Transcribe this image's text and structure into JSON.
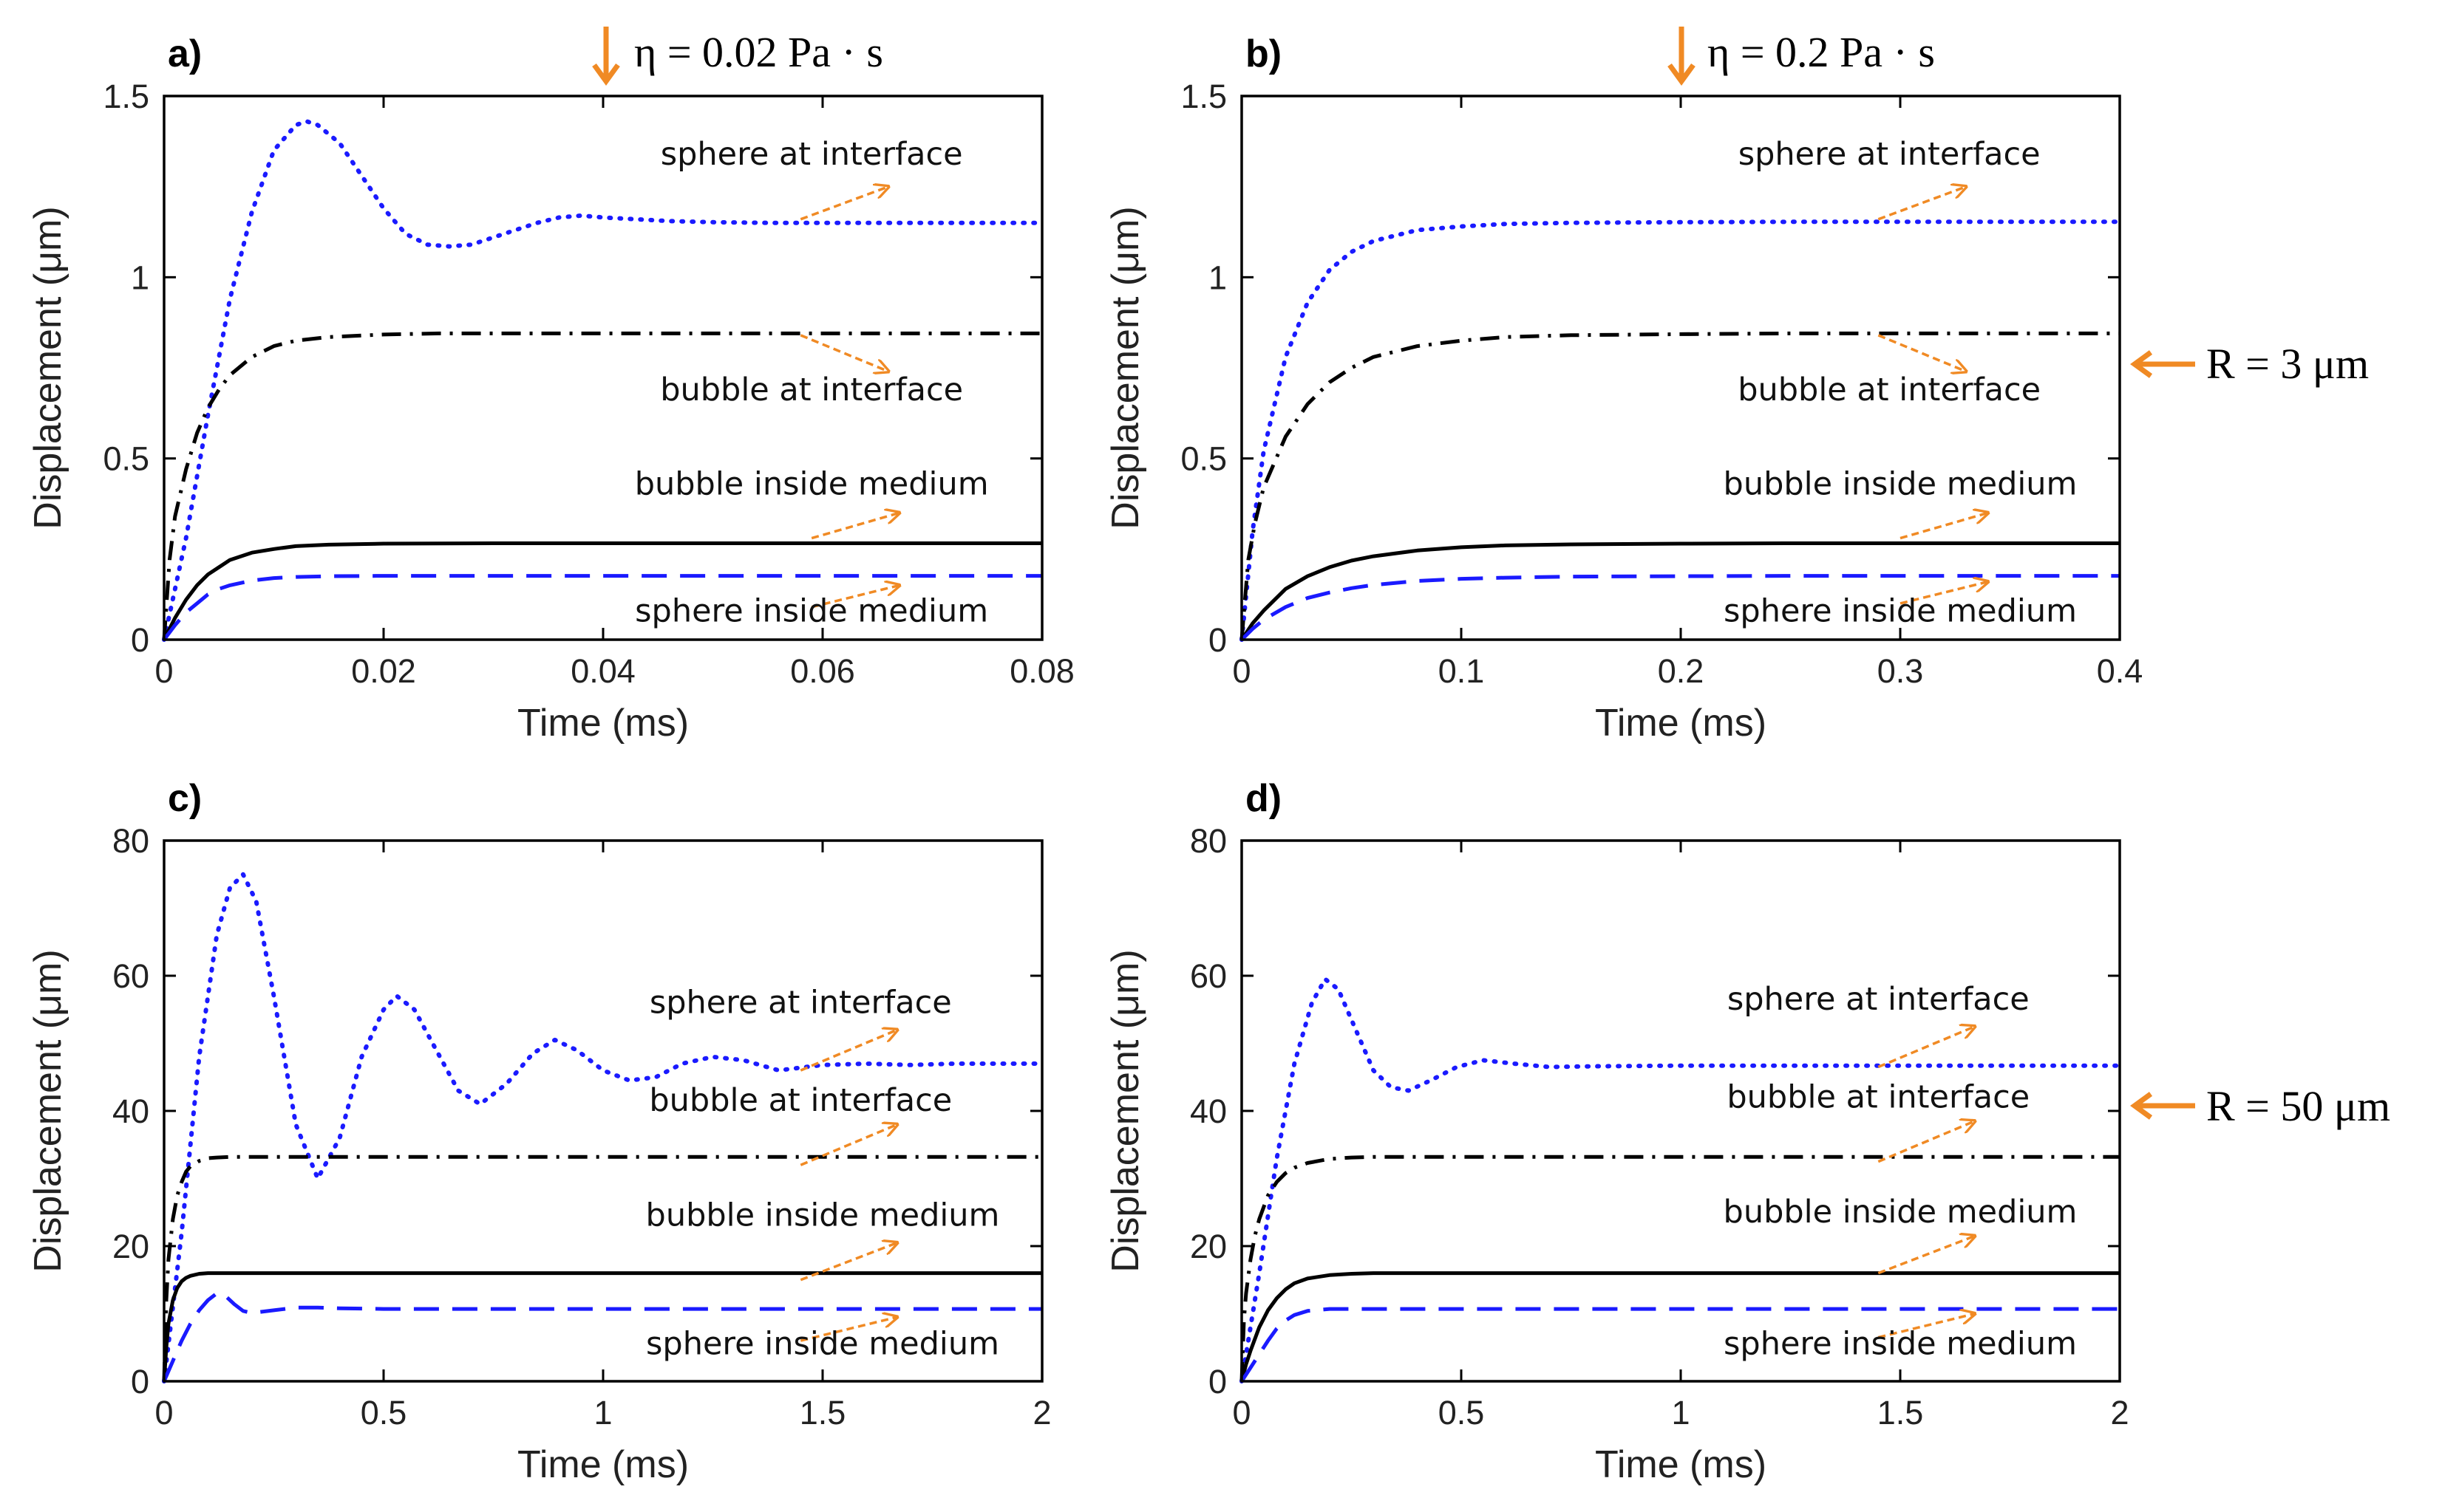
{
  "figure": {
    "top_annotations": {
      "viscosity_a": "η = 0.02 Pa · s",
      "viscosity_b": "η = 0.2 Pa · s",
      "radius_top": "R = 3 μm",
      "radius_bottom": "R = 50 μm"
    },
    "colors": {
      "sphere_interface": "#1a1aff",
      "bubble_interface": "#000000",
      "bubble_medium": "#000000",
      "sphere_medium": "#1a1aff",
      "arrow": "#f08a24"
    }
  },
  "chart_data": [
    {
      "panel": "a)",
      "type": "line",
      "xlabel": "Time (ms)",
      "ylabel": "Displacement (μm)",
      "xlim": [
        0,
        0.08
      ],
      "ylim": [
        0,
        1.5
      ],
      "xticks": [
        "0",
        "0.02",
        "0.04",
        "0.06",
        "0.08"
      ],
      "yticks": [
        "0",
        "0.5",
        "1",
        "1.5"
      ],
      "series": [
        {
          "name": "sphere at interface",
          "style": "dotted",
          "color": "#1a1aff",
          "x": [
            0,
            0.002,
            0.004,
            0.006,
            0.008,
            0.01,
            0.012,
            0.013,
            0.014,
            0.016,
            0.018,
            0.02,
            0.022,
            0.024,
            0.026,
            0.028,
            0.03,
            0.032,
            0.034,
            0.036,
            0.038,
            0.04,
            0.043,
            0.046,
            0.05,
            0.055,
            0.06,
            0.065,
            0.07,
            0.075,
            0.08
          ],
          "y": [
            0,
            0.28,
            0.62,
            0.94,
            1.18,
            1.35,
            1.42,
            1.43,
            1.42,
            1.37,
            1.28,
            1.19,
            1.12,
            1.09,
            1.085,
            1.09,
            1.11,
            1.13,
            1.15,
            1.165,
            1.17,
            1.165,
            1.16,
            1.155,
            1.152,
            1.15,
            1.15,
            1.15,
            1.15,
            1.15,
            1.15
          ]
        },
        {
          "name": "bubble at interface",
          "style": "dashdot",
          "color": "#000000",
          "x": [
            0,
            0.0005,
            0.001,
            0.002,
            0.003,
            0.004,
            0.005,
            0.006,
            0.008,
            0.01,
            0.012,
            0.015,
            0.02,
            0.025,
            0.03,
            0.04,
            0.05,
            0.06,
            0.07,
            0.08
          ],
          "y": [
            0,
            0.22,
            0.34,
            0.47,
            0.57,
            0.64,
            0.69,
            0.73,
            0.78,
            0.81,
            0.825,
            0.835,
            0.842,
            0.845,
            0.845,
            0.845,
            0.845,
            0.845,
            0.845,
            0.845
          ]
        },
        {
          "name": "bubble inside medium",
          "style": "solid",
          "color": "#000000",
          "x": [
            0,
            0.001,
            0.002,
            0.003,
            0.004,
            0.005,
            0.006,
            0.008,
            0.01,
            0.012,
            0.015,
            0.02,
            0.03,
            0.04,
            0.06,
            0.08
          ],
          "y": [
            0,
            0.06,
            0.11,
            0.15,
            0.18,
            0.2,
            0.22,
            0.24,
            0.25,
            0.258,
            0.262,
            0.265,
            0.266,
            0.266,
            0.266,
            0.266
          ]
        },
        {
          "name": "sphere inside medium",
          "style": "dashed",
          "color": "#1a1aff",
          "x": [
            0,
            0.001,
            0.002,
            0.003,
            0.004,
            0.005,
            0.006,
            0.008,
            0.01,
            0.012,
            0.015,
            0.02,
            0.03,
            0.04,
            0.06,
            0.08
          ],
          "y": [
            0,
            0.04,
            0.075,
            0.1,
            0.125,
            0.14,
            0.15,
            0.163,
            0.17,
            0.173,
            0.175,
            0.176,
            0.176,
            0.176,
            0.176,
            0.176
          ]
        }
      ],
      "annotations": [
        {
          "text": "sphere at interface",
          "x": 0.059,
          "y": 1.31,
          "arrow_from": [
            0.058,
            1.16
          ],
          "arrow_to": [
            0.066,
            1.25
          ]
        },
        {
          "text": "bubble at interface",
          "x": 0.059,
          "y": 0.66,
          "arrow_from": [
            0.058,
            0.84
          ],
          "arrow_to": [
            0.066,
            0.74
          ]
        },
        {
          "text": "bubble inside medium",
          "x": 0.059,
          "y": 0.4,
          "arrow_from": [
            0.059,
            0.28
          ],
          "arrow_to": [
            0.067,
            0.35
          ]
        },
        {
          "text": "sphere inside medium",
          "x": 0.059,
          "y": 0.05,
          "arrow_from": [
            0.059,
            0.09
          ],
          "arrow_to": [
            0.067,
            0.15
          ]
        }
      ]
    },
    {
      "panel": "b)",
      "type": "line",
      "xlabel": "Time (ms)",
      "ylabel": "Displacement (μm)",
      "xlim": [
        0,
        0.4
      ],
      "ylim": [
        0,
        1.5
      ],
      "xticks": [
        "0",
        "0.1",
        "0.2",
        "0.3",
        "0.4"
      ],
      "yticks": [
        "0",
        "0.5",
        "1",
        "1.5"
      ],
      "series": [
        {
          "name": "sphere at interface",
          "style": "dotted",
          "color": "#1a1aff",
          "x": [
            0,
            0.005,
            0.01,
            0.02,
            0.03,
            0.04,
            0.05,
            0.06,
            0.08,
            0.1,
            0.12,
            0.15,
            0.2,
            0.25,
            0.3,
            0.35,
            0.4
          ],
          "y": [
            0,
            0.3,
            0.52,
            0.78,
            0.93,
            1.02,
            1.07,
            1.1,
            1.13,
            1.14,
            1.147,
            1.15,
            1.152,
            1.153,
            1.153,
            1.153,
            1.153
          ]
        },
        {
          "name": "bubble at interface",
          "style": "dashdot",
          "color": "#000000",
          "x": [
            0,
            0.003,
            0.006,
            0.01,
            0.02,
            0.03,
            0.04,
            0.05,
            0.06,
            0.08,
            0.1,
            0.12,
            0.15,
            0.2,
            0.25,
            0.3,
            0.4
          ],
          "y": [
            0,
            0.22,
            0.32,
            0.42,
            0.56,
            0.65,
            0.71,
            0.75,
            0.78,
            0.81,
            0.825,
            0.835,
            0.84,
            0.843,
            0.845,
            0.845,
            0.845
          ]
        },
        {
          "name": "bubble inside medium",
          "style": "solid",
          "color": "#000000",
          "x": [
            0,
            0.005,
            0.01,
            0.02,
            0.03,
            0.04,
            0.05,
            0.06,
            0.08,
            0.1,
            0.12,
            0.15,
            0.2,
            0.25,
            0.3,
            0.4
          ],
          "y": [
            0,
            0.045,
            0.08,
            0.14,
            0.175,
            0.2,
            0.218,
            0.23,
            0.246,
            0.255,
            0.26,
            0.263,
            0.265,
            0.266,
            0.266,
            0.266
          ]
        },
        {
          "name": "sphere inside medium",
          "style": "dashed",
          "color": "#1a1aff",
          "x": [
            0,
            0.005,
            0.01,
            0.02,
            0.03,
            0.04,
            0.05,
            0.06,
            0.08,
            0.1,
            0.12,
            0.15,
            0.2,
            0.25,
            0.3,
            0.4
          ],
          "y": [
            0,
            0.03,
            0.055,
            0.09,
            0.115,
            0.13,
            0.142,
            0.151,
            0.162,
            0.168,
            0.171,
            0.174,
            0.175,
            0.176,
            0.176,
            0.176
          ]
        }
      ],
      "annotations": [
        {
          "text": "sphere at interface",
          "x": 0.295,
          "y": 1.31,
          "arrow_from": [
            0.29,
            1.16
          ],
          "arrow_to": [
            0.33,
            1.25
          ]
        },
        {
          "text": "bubble at interface",
          "x": 0.295,
          "y": 0.66,
          "arrow_from": [
            0.29,
            0.84
          ],
          "arrow_to": [
            0.33,
            0.74
          ]
        },
        {
          "text": "bubble inside medium",
          "x": 0.3,
          "y": 0.4,
          "arrow_from": [
            0.3,
            0.28
          ],
          "arrow_to": [
            0.34,
            0.35
          ]
        },
        {
          "text": "sphere inside medium",
          "x": 0.3,
          "y": 0.05,
          "arrow_from": [
            0.3,
            0.1
          ],
          "arrow_to": [
            0.34,
            0.16
          ]
        }
      ]
    },
    {
      "panel": "c)",
      "type": "line",
      "xlabel": "Time (ms)",
      "ylabel": "Displacement (μm)",
      "xlim": [
        0,
        2
      ],
      "ylim": [
        0,
        80
      ],
      "xticks": [
        "0",
        "0.5",
        "1",
        "1.5",
        "2"
      ],
      "yticks": [
        "0",
        "20",
        "40",
        "60",
        "80"
      ],
      "series": [
        {
          "name": "sphere at interface",
          "style": "dotted",
          "color": "#1a1aff",
          "x": [
            0,
            0.04,
            0.08,
            0.12,
            0.15,
            0.18,
            0.21,
            0.25,
            0.3,
            0.35,
            0.4,
            0.45,
            0.5,
            0.53,
            0.57,
            0.62,
            0.67,
            0.72,
            0.78,
            0.84,
            0.89,
            0.94,
            1.0,
            1.06,
            1.12,
            1.18,
            1.25,
            1.32,
            1.4,
            1.5,
            1.6,
            1.7,
            1.8,
            2.0
          ],
          "y": [
            0,
            22,
            48,
            66,
            73,
            75,
            71,
            57,
            38,
            30,
            36,
            48,
            55,
            57,
            55,
            49,
            43,
            41,
            44,
            48.5,
            50.5,
            49,
            46,
            44.5,
            45,
            47,
            48,
            47.5,
            46,
            46.8,
            47,
            46.8,
            47,
            47
          ]
        },
        {
          "name": "bubble at interface",
          "style": "dashdot",
          "color": "#000000",
          "x": [
            0,
            0.005,
            0.01,
            0.02,
            0.03,
            0.04,
            0.05,
            0.06,
            0.08,
            0.1,
            0.12,
            0.15,
            0.2,
            0.3,
            0.5,
            1.0,
            1.5,
            2.0
          ],
          "y": [
            0,
            12,
            18,
            24,
            27.5,
            29.5,
            31,
            31.8,
            32.6,
            33,
            33.1,
            33.2,
            33.2,
            33.2,
            33.2,
            33.2,
            33.2,
            33.2
          ]
        },
        {
          "name": "bubble inside medium",
          "style": "solid",
          "color": "#000000",
          "x": [
            0,
            0.005,
            0.01,
            0.02,
            0.03,
            0.04,
            0.05,
            0.06,
            0.08,
            0.1,
            0.15,
            0.2,
            0.5,
            1.0,
            2.0
          ],
          "y": [
            0,
            5,
            8.5,
            12,
            13.8,
            14.8,
            15.3,
            15.6,
            15.9,
            16,
            16,
            16,
            16,
            16,
            16
          ]
        },
        {
          "name": "sphere inside medium",
          "style": "dashed",
          "color": "#1a1aff",
          "x": [
            0,
            0.02,
            0.04,
            0.06,
            0.08,
            0.1,
            0.12,
            0.14,
            0.16,
            0.18,
            0.2,
            0.25,
            0.3,
            0.35,
            0.4,
            0.5,
            0.7,
            1.0,
            1.5,
            2.0
          ],
          "y": [
            0,
            3,
            6,
            8.5,
            10.5,
            12,
            13,
            12.6,
            11.4,
            10.4,
            10.1,
            10.5,
            10.9,
            10.9,
            10.8,
            10.7,
            10.7,
            10.7,
            10.7,
            10.7
          ]
        }
      ],
      "annotations": [
        {
          "text": "sphere at interface",
          "x": 1.45,
          "y": 54.5,
          "arrow_from": [
            1.45,
            46
          ],
          "arrow_to": [
            1.67,
            52
          ]
        },
        {
          "text": "bubble at interface",
          "x": 1.45,
          "y": 40,
          "arrow_from": [
            1.45,
            32
          ],
          "arrow_to": [
            1.67,
            38
          ]
        },
        {
          "text": "bubble inside medium",
          "x": 1.5,
          "y": 23,
          "arrow_from": [
            1.45,
            15
          ],
          "arrow_to": [
            1.67,
            20.5
          ]
        },
        {
          "text": "sphere inside medium",
          "x": 1.5,
          "y": 4,
          "arrow_from": [
            1.45,
            6
          ],
          "arrow_to": [
            1.67,
            9.5
          ]
        }
      ]
    },
    {
      "panel": "d)",
      "type": "line",
      "xlabel": "Time (ms)",
      "ylabel": "Displacement (μm)",
      "xlim": [
        0,
        2
      ],
      "ylim": [
        0,
        80
      ],
      "xticks": [
        "0",
        "0.5",
        "1",
        "1.5",
        "2"
      ],
      "yticks": [
        "0",
        "20",
        "40",
        "60",
        "80"
      ],
      "series": [
        {
          "name": "sphere at interface",
          "style": "dotted",
          "color": "#1a1aff",
          "x": [
            0,
            0.04,
            0.08,
            0.12,
            0.16,
            0.19,
            0.22,
            0.26,
            0.3,
            0.34,
            0.38,
            0.43,
            0.49,
            0.55,
            0.62,
            0.7,
            0.8,
            1.0,
            1.5,
            2.0
          ],
          "y": [
            0,
            16,
            33,
            47,
            56,
            59.5,
            58,
            52,
            46,
            43.5,
            43,
            44.5,
            46.5,
            47.5,
            47,
            46.5,
            46.6,
            46.7,
            46.7,
            46.7
          ]
        },
        {
          "name": "bubble at interface",
          "style": "dashdot",
          "color": "#000000",
          "x": [
            0,
            0.005,
            0.01,
            0.02,
            0.03,
            0.04,
            0.06,
            0.08,
            0.1,
            0.12,
            0.15,
            0.2,
            0.25,
            0.3,
            0.4,
            0.6,
            1.0,
            1.5,
            2.0
          ],
          "y": [
            0,
            9,
            13,
            18,
            21.5,
            24,
            27.5,
            29.5,
            30.8,
            31.6,
            32.3,
            32.9,
            33.1,
            33.2,
            33.2,
            33.2,
            33.2,
            33.2,
            33.2
          ]
        },
        {
          "name": "bubble inside medium",
          "style": "solid",
          "color": "#000000",
          "x": [
            0,
            0.01,
            0.02,
            0.04,
            0.06,
            0.08,
            0.1,
            0.12,
            0.15,
            0.2,
            0.25,
            0.3,
            0.5,
            1.0,
            2.0
          ],
          "y": [
            0,
            2.5,
            4.5,
            8,
            10.5,
            12.3,
            13.6,
            14.5,
            15.2,
            15.7,
            15.9,
            16,
            16,
            16,
            16
          ]
        },
        {
          "name": "sphere inside medium",
          "style": "dashed",
          "color": "#1a1aff",
          "x": [
            0,
            0.02,
            0.04,
            0.06,
            0.08,
            0.1,
            0.12,
            0.15,
            0.2,
            0.25,
            0.3,
            0.5,
            1.0,
            2.0
          ],
          "y": [
            0,
            2,
            4,
            6,
            7.8,
            9,
            9.8,
            10.4,
            10.7,
            10.7,
            10.7,
            10.7,
            10.7,
            10.7
          ]
        }
      ],
      "annotations": [
        {
          "text": "sphere at interface",
          "x": 1.45,
          "y": 55,
          "arrow_from": [
            1.45,
            46.5
          ],
          "arrow_to": [
            1.67,
            52.5
          ]
        },
        {
          "text": "bubble at interface",
          "x": 1.45,
          "y": 40.5,
          "arrow_from": [
            1.45,
            32.5
          ],
          "arrow_to": [
            1.67,
            38.5
          ]
        },
        {
          "text": "bubble inside medium",
          "x": 1.5,
          "y": 23.5,
          "arrow_from": [
            1.45,
            16
          ],
          "arrow_to": [
            1.67,
            21.5
          ]
        },
        {
          "text": "sphere inside medium",
          "x": 1.5,
          "y": 4,
          "arrow_from": [
            1.45,
            6.5
          ],
          "arrow_to": [
            1.67,
            10
          ]
        }
      ]
    }
  ]
}
